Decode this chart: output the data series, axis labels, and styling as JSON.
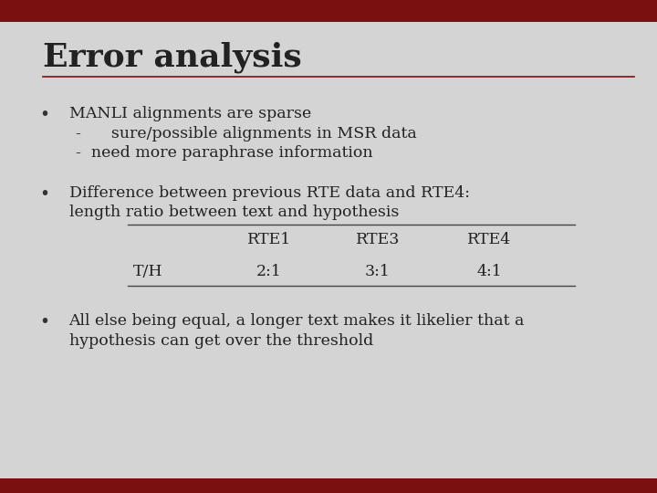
{
  "title": "Error analysis",
  "title_fontsize": 26,
  "title_color": "#222222",
  "title_font": "DejaVu Serif",
  "bg_color": "#d4d4d4",
  "top_bar_color": "#7a1010",
  "bottom_bar_color": "#7a1010",
  "header_line_color": "#7a1010",
  "bullet_color": "#333333",
  "text_color": "#222222",
  "text_fontsize": 12.5,
  "bullet1_line1": "MANLI alignments are sparse",
  "bullet1_line2": "-      sure/possible alignments in MSR data",
  "bullet1_line3": "-  need more paraphrase information",
  "bullet2_line1": "Difference between previous RTE data and RTE4:",
  "bullet2_line2": "length ratio between text and hypothesis",
  "table_headers": [
    "",
    "RTE1",
    "RTE3",
    "RTE4"
  ],
  "table_row": [
    "T/H",
    "2:1",
    "3:1",
    "4:1"
  ],
  "bullet3_line1": "All else being equal, a longer text makes it likelier that a",
  "bullet3_line2": "hypothesis can get over the threshold"
}
